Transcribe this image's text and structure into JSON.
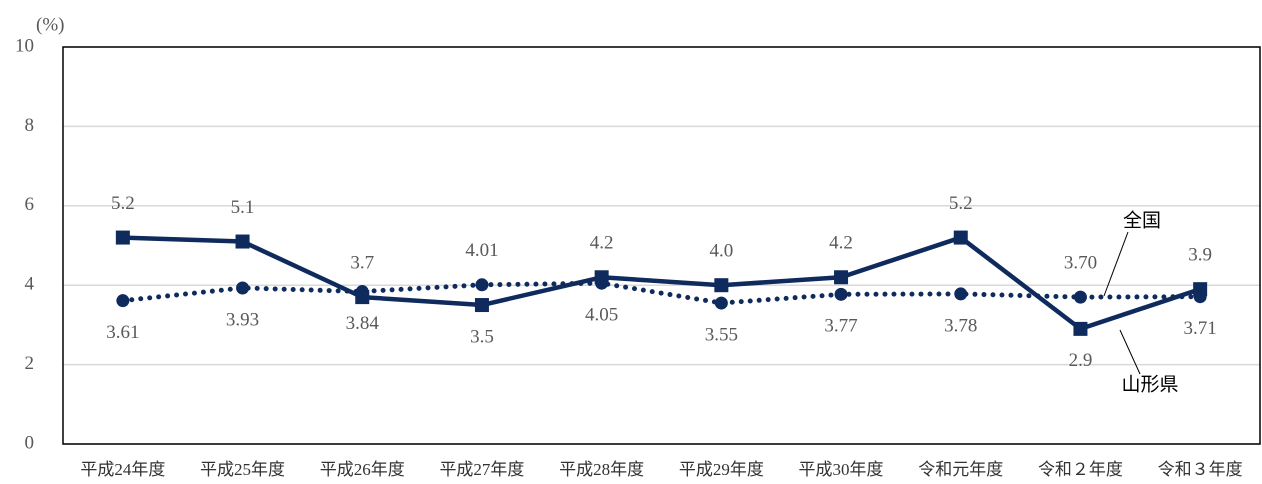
{
  "chart_data": {
    "type": "line",
    "y_label": "(%)",
    "categories": [
      "平成24年度",
      "平成25年度",
      "平成26年度",
      "平成27年度",
      "平成28年度",
      "平成29年度",
      "平成30年度",
      "令和元年度",
      "令和２年度",
      "令和３年度"
    ],
    "series": [
      {
        "name": "山形県",
        "color": "#0f2a5c",
        "style": "solid",
        "marker": "square",
        "values": [
          5.2,
          5.1,
          3.7,
          3.5,
          4.2,
          4.0,
          4.2,
          5.2,
          2.9,
          3.9
        ],
        "value_labels": [
          "5.2",
          "5.1",
          "3.7",
          "3.5",
          "4.2",
          "4.0",
          "4.2",
          "5.2",
          "2.9",
          "3.9"
        ]
      },
      {
        "name": "全国",
        "color": "#0f2a5c",
        "style": "dotted",
        "marker": "circle",
        "values": [
          3.61,
          3.93,
          3.84,
          4.01,
          4.05,
          3.55,
          3.77,
          3.78,
          3.7,
          3.71
        ],
        "value_labels": [
          "3.61",
          "3.93",
          "3.84",
          "4.01",
          "4.05",
          "3.55",
          "3.77",
          "3.78",
          "3.70",
          "3.71"
        ]
      }
    ],
    "ylim": [
      0,
      10
    ],
    "yticks": [
      0,
      2,
      4,
      6,
      8,
      10
    ],
    "grid": true
  }
}
